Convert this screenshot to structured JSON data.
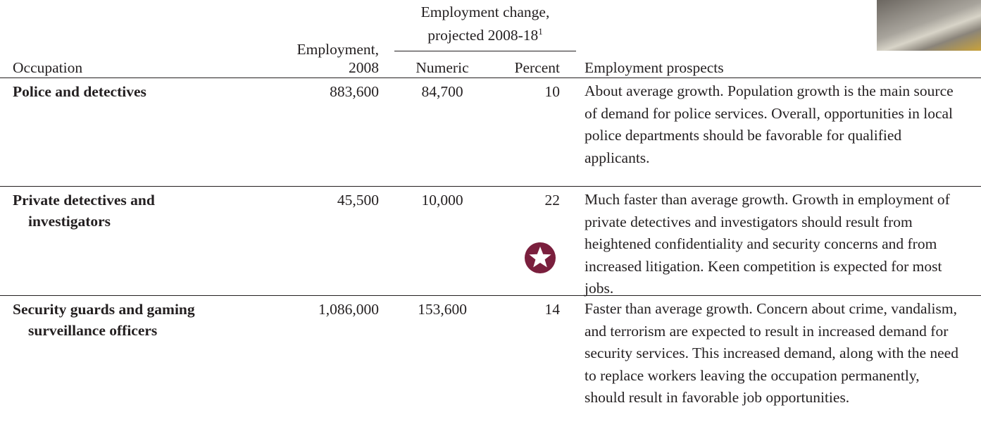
{
  "table": {
    "header": {
      "occupation": "Occupation",
      "employment_line1": "Employment,",
      "employment_line2": "2008",
      "change_line1": "Employment change,",
      "change_line2": "projected 2008-18",
      "footnote_mark": "1",
      "numeric": "Numeric",
      "percent": "Percent",
      "prospects": "Employment prospects"
    },
    "rows": [
      [
        "Police and detectives",
        "883,600",
        "84,700",
        "10",
        "About average growth. Population growth is the main source of demand for police services. Overall, opportunities in local police departments should be favorable for qualified applicants."
      ],
      [
        "Private detectives and investigators",
        "45,500",
        "10,000",
        "22",
        "Much faster than average growth. Growth in employment of private detectives and investigators should result from heightened confidentiality and security concerns and from increased litigation. Keen competition is expected for most jobs."
      ],
      [
        "Security guards and gaming surveillance officers",
        "1,086,000",
        "153,600",
        "14",
        "Faster than average growth. Concern about crime, vandalism, and terrorism are expected to result in increased demand for security services. This increased demand, along with the need to replace workers leaving the occupation permanently, should result in favorable job opportunities."
      ]
    ]
  }
}
